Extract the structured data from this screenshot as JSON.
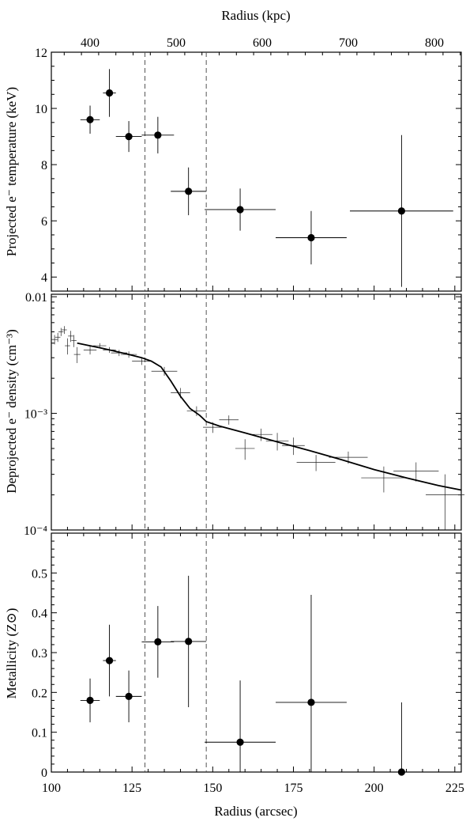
{
  "figure": {
    "top_axis_label": "Radius (kpc)",
    "bottom_axis_label": "Radius (arcsec)"
  },
  "chart_data": [
    {
      "type": "scatter",
      "panel": "temperature",
      "ylabel": "Projected e⁻ temperature (keV)",
      "xlim": [
        100,
        227
      ],
      "ylim": [
        3.5,
        12
      ],
      "yticks": [
        4,
        6,
        8,
        10,
        12
      ],
      "x_top_ticks_kpc": [
        400,
        500,
        600,
        700,
        800
      ],
      "vertical_lines_x": [
        129,
        148
      ],
      "points": [
        {
          "x": 112,
          "xerr": 3,
          "y": 9.6,
          "yerr": 0.5
        },
        {
          "x": 118,
          "xerr": 2,
          "y": 10.55,
          "yerr": 0.85
        },
        {
          "x": 124,
          "xerr": 4,
          "y": 9.0,
          "yerr": 0.55
        },
        {
          "x": 133,
          "xerr": 5,
          "y": 9.05,
          "yerr": 0.65
        },
        {
          "x": 142.5,
          "xerr": 5.5,
          "y": 7.05,
          "yerr": 0.85
        },
        {
          "x": 158.5,
          "xerr": 11,
          "y": 6.4,
          "yerr": 0.75
        },
        {
          "x": 180.5,
          "xerr": 11,
          "y": 5.4,
          "yerr": 0.95
        },
        {
          "x": 208.5,
          "xerr": 16,
          "y": 6.35,
          "yerr": 2.7
        }
      ]
    },
    {
      "type": "scatter",
      "panel": "density",
      "ylabel": "Deprojected e⁻ density (cm⁻³)",
      "yscale": "log",
      "xlim": [
        100,
        227
      ],
      "ylim": [
        0.0001,
        0.0105
      ],
      "ytick_labels": [
        {
          "value": 0.01,
          "label": "0.01"
        },
        {
          "value": 0.001,
          "label": "10⁻³"
        },
        {
          "value": 0.0001,
          "label": "10⁻⁴"
        }
      ],
      "vertical_lines_x": [
        129,
        148
      ],
      "points": [
        {
          "x": 101,
          "xerr": 1,
          "y": 0.0043,
          "yerr": 0.0004
        },
        {
          "x": 102,
          "xerr": 0.8,
          "y": 0.0045,
          "yerr": 0.0004
        },
        {
          "x": 103,
          "xerr": 0.8,
          "y": 0.005,
          "yerr": 0.0004
        },
        {
          "x": 104,
          "xerr": 0.8,
          "y": 0.0052,
          "yerr": 0.0004
        },
        {
          "x": 105,
          "xerr": 0.8,
          "y": 0.0038,
          "yerr": 0.0006
        },
        {
          "x": 106,
          "xerr": 0.8,
          "y": 0.0046,
          "yerr": 0.0005
        },
        {
          "x": 107,
          "xerr": 0.8,
          "y": 0.0042,
          "yerr": 0.0005
        },
        {
          "x": 108,
          "xerr": 1,
          "y": 0.0032,
          "yerr": 0.0005
        },
        {
          "x": 112,
          "xerr": 2,
          "y": 0.0035,
          "yerr": 0.0003
        },
        {
          "x": 115,
          "xerr": 2,
          "y": 0.0038,
          "yerr": 0.0002
        },
        {
          "x": 118,
          "xerr": 2,
          "y": 0.0035,
          "yerr": 0.0002
        },
        {
          "x": 121,
          "xerr": 2.5,
          "y": 0.0033,
          "yerr": 0.0002
        },
        {
          "x": 124,
          "xerr": 2.5,
          "y": 0.0032,
          "yerr": 0.0002
        },
        {
          "x": 128,
          "xerr": 3,
          "y": 0.0028,
          "yerr": 0.0002
        },
        {
          "x": 135,
          "xerr": 4,
          "y": 0.0023,
          "yerr": 0.0002
        },
        {
          "x": 140,
          "xerr": 3,
          "y": 0.0015,
          "yerr": 0.00015
        },
        {
          "x": 145,
          "xerr": 3,
          "y": 0.00105,
          "yerr": 0.0001
        },
        {
          "x": 150,
          "xerr": 3,
          "y": 0.00076,
          "yerr": 8e-05
        },
        {
          "x": 155,
          "xerr": 3,
          "y": 0.00088,
          "yerr": 8e-05
        },
        {
          "x": 160,
          "xerr": 3,
          "y": 0.0005,
          "yerr": 0.0001
        },
        {
          "x": 165,
          "xerr": 3.5,
          "y": 0.00066,
          "yerr": 8e-05
        },
        {
          "x": 170,
          "xerr": 3.5,
          "y": 0.00058,
          "yerr": 0.0001
        },
        {
          "x": 175,
          "xerr": 3.5,
          "y": 0.00053,
          "yerr": 9e-05
        },
        {
          "x": 182,
          "xerr": 6,
          "y": 0.00038,
          "yerr": 6e-05
        },
        {
          "x": 192,
          "xerr": 6,
          "y": 0.00042,
          "yerr": 5e-05
        },
        {
          "x": 203,
          "xerr": 7,
          "y": 0.00028,
          "yerr": 7e-05
        },
        {
          "x": 213,
          "xerr": 7,
          "y": 0.00032,
          "yerr": 6e-05
        },
        {
          "x": 222,
          "xerr": 6,
          "y": 0.0002,
          "yerr": 0.0001
        }
      ],
      "model_curve": {
        "x": [
          108,
          112,
          116,
          120,
          124,
          128,
          131,
          134,
          137,
          140,
          143,
          146,
          148,
          152,
          160,
          170,
          180,
          190,
          200,
          210,
          220,
          227
        ],
        "y": [
          0.004,
          0.0038,
          0.0036,
          0.0034,
          0.0032,
          0.003,
          0.0028,
          0.0025,
          0.0019,
          0.0014,
          0.0011,
          0.00096,
          0.00085,
          0.00078,
          0.00068,
          0.00057,
          0.00048,
          0.0004,
          0.00033,
          0.00028,
          0.00024,
          0.00022
        ]
      }
    },
    {
      "type": "scatter",
      "panel": "metallicity",
      "ylabel": "Metallicity (Z⊙)",
      "xlim": [
        100,
        227
      ],
      "ylim": [
        0,
        0.6
      ],
      "yticks": [
        0,
        0.1,
        0.2,
        0.3,
        0.4,
        0.5
      ],
      "ytick_labels": [
        "0",
        "0.1",
        "0.2",
        "0.3",
        "0.4",
        "0.5"
      ],
      "xticks": [
        100,
        125,
        150,
        175,
        200,
        225
      ],
      "vertical_lines_x": [
        129,
        148
      ],
      "points": [
        {
          "x": 112,
          "xerr": 3,
          "y": 0.18,
          "yerr": 0.055
        },
        {
          "x": 118,
          "xerr": 2,
          "y": 0.28,
          "yerr": 0.09
        },
        {
          "x": 124,
          "xerr": 4,
          "y": 0.19,
          "yerr": 0.065
        },
        {
          "x": 133,
          "xerr": 5,
          "y": 0.327,
          "yerr": 0.09
        },
        {
          "x": 142.5,
          "xerr": 5.5,
          "y": 0.328,
          "yerr": 0.165
        },
        {
          "x": 158.5,
          "xerr": 11,
          "y": 0.075,
          "yerr": 0.155
        },
        {
          "x": 180.5,
          "xerr": 11,
          "y": 0.175,
          "yerr": 0.27
        },
        {
          "x": 208.5,
          "xerr": 16,
          "y": 0.0,
          "yerr": 0.175
        }
      ]
    }
  ]
}
